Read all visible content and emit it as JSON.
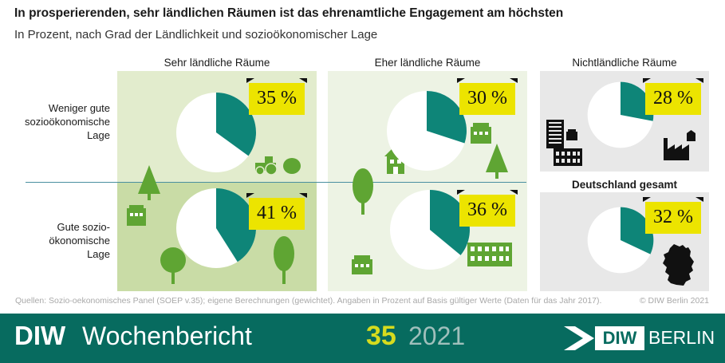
{
  "title": "In prosperierenden, sehr ländlichen Räumen ist das ehrenamtliche Engagement am höchsten",
  "subtitle": "In Prozent, nach Grad der Ländlichkeit und sozioökonomischer Lage",
  "colors": {
    "pie_teal": "#0e8578",
    "tag_yellow": "#ece400",
    "panel_light_green": "#e2eccd",
    "panel_mid_green": "#c9dca6",
    "panel_pale_green": "#edf3e4",
    "panel_grey": "#e8e8e8",
    "icon_green": "#5fa533",
    "footer_teal": "#076b5f"
  },
  "chart_data": {
    "type": "pie",
    "columns": [
      "Sehr ländliche Räume",
      "Eher ländliche Räume",
      "Nichtländliche Räume"
    ],
    "rows": [
      "Weniger gute sozioökonomische Lage",
      "Gute sozio-ökonomische Lage"
    ],
    "extra_label": "Deutschland gesamt",
    "value_format": "{v} %",
    "cells": [
      {
        "id": "vr-low",
        "column": "Sehr ländliche Räume",
        "row": "Weniger gute sozioökonomische Lage",
        "value": 35
      },
      {
        "id": "vr-high",
        "column": "Sehr ländliche Räume",
        "row": "Gute sozio-ökonomische Lage",
        "value": 41
      },
      {
        "id": "er-low",
        "column": "Eher ländliche Räume",
        "row": "Weniger gute sozioökonomische Lage",
        "value": 30
      },
      {
        "id": "er-high",
        "column": "Eher ländliche Räume",
        "row": "Gute sozio-ökonomische Lage",
        "value": 36
      },
      {
        "id": "nl",
        "column": "Nichtländliche Räume",
        "value": 28
      },
      {
        "id": "de",
        "column": "Deutschland gesamt",
        "value": 32
      }
    ]
  },
  "labels": {
    "col1": "Sehr ländliche Räume",
    "col2": "Eher ländliche Räume",
    "col3": "Nichtländliche Räume",
    "col4": "Deutschland gesamt",
    "row1": [
      "Weniger gute",
      "sozioökonomische",
      "Lage"
    ],
    "row2": [
      "Gute sozio-",
      "ökonomische",
      "Lage"
    ]
  },
  "source": "Quellen: Sozio-oekonomisches Panel (SOEP v.35); eigene Berechnungen (gewichtet). Angaben in Prozent auf Basis gültiger Werte (Daten für das Jahr 2017).",
  "copyright": "© DIW Berlin 2021",
  "footer": {
    "pub_short": "DIW",
    "pub_name": "Wochenbericht",
    "issue": "35",
    "year": "2021",
    "logo_diw": "DIW",
    "logo_berlin": "BERLIN"
  }
}
